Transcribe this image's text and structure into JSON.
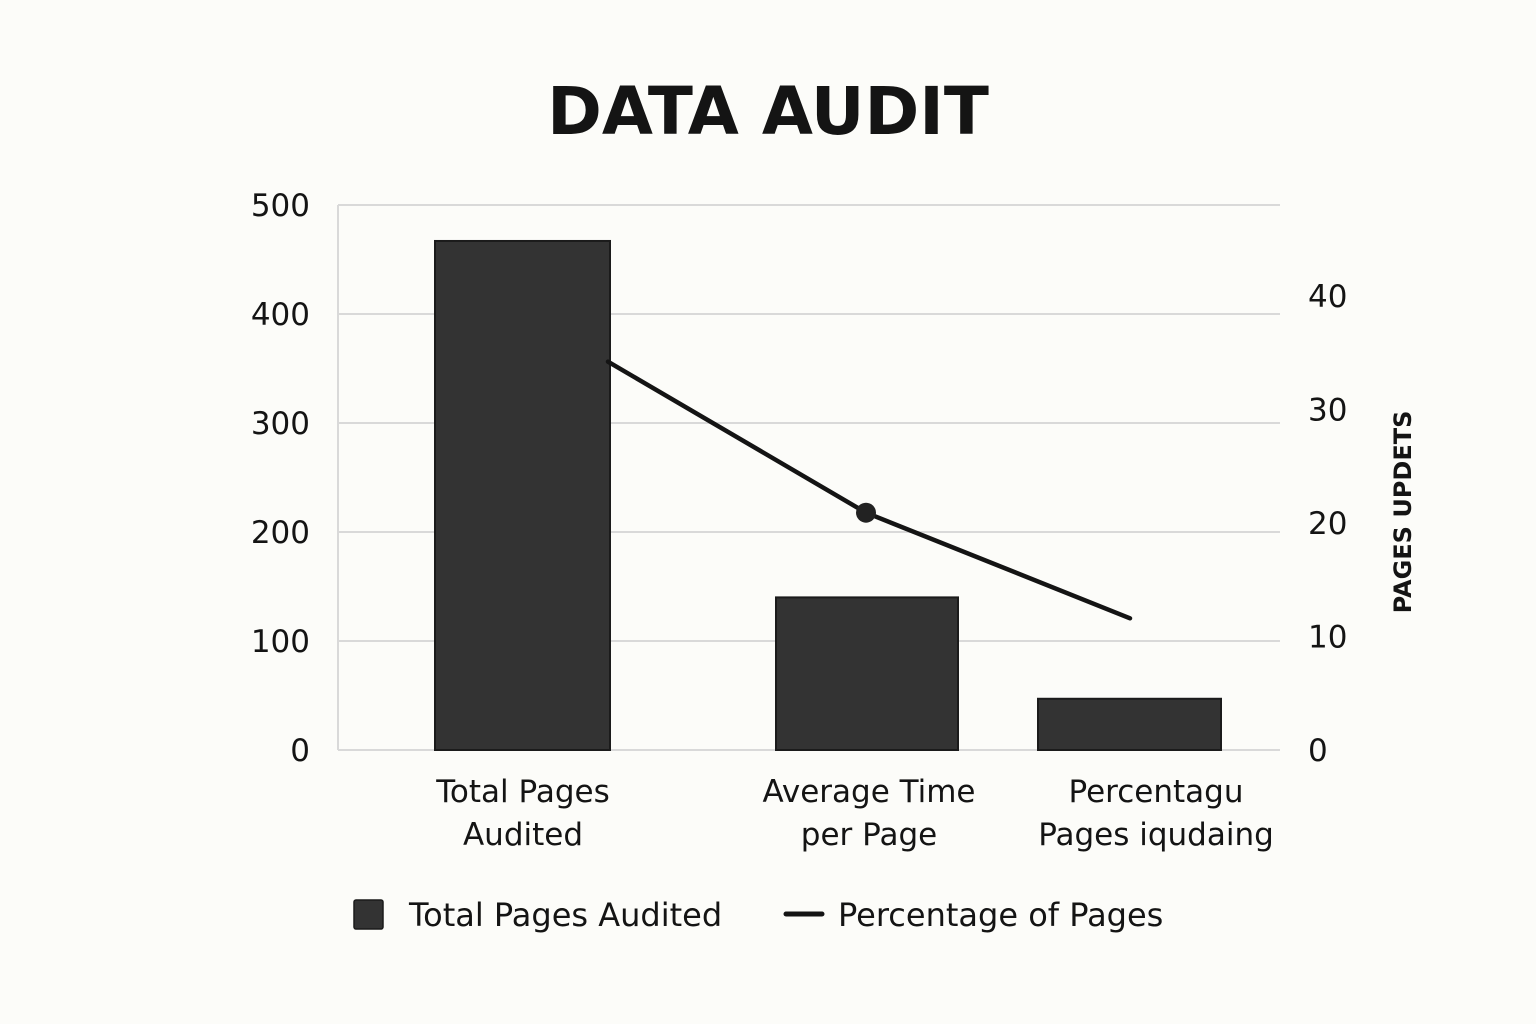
{
  "chart_data": {
    "type": "bar",
    "title": "DATA AUDIT",
    "categories": [
      [
        "Total Pages",
        "Audited"
      ],
      [
        "Average Time",
        "per Page"
      ],
      [
        "Percentagu",
        "Pages iqudaing"
      ]
    ],
    "y_left": {
      "label": "",
      "ticks": [
        0,
        100,
        200,
        300,
        400,
        500
      ],
      "lim": [
        0,
        500
      ]
    },
    "y_right": {
      "label": "PAGES UPDETS",
      "ticks": [
        0,
        10,
        20,
        30,
        40
      ],
      "lim": [
        0,
        48
      ]
    },
    "grid": true,
    "series": [
      {
        "name": "Total Pages Audited",
        "type": "bar",
        "axis": "left",
        "values": [
          467,
          140,
          47
        ]
      },
      {
        "name": "Percentage of Pages",
        "type": "line",
        "axis": "right",
        "values": [
          34.2,
          20.9,
          11.6
        ],
        "marker_on": [
          1
        ]
      }
    ],
    "legend": {
      "position": "bottom",
      "entries": [
        {
          "label": "Total Pages Audited",
          "symbol": "square"
        },
        {
          "label": "Percentage of Pages",
          "symbol": "line"
        }
      ]
    },
    "colors": {
      "bar": "#333333",
      "line": "#141414",
      "grid": "#d9d9d9",
      "text": "#141414"
    }
  }
}
